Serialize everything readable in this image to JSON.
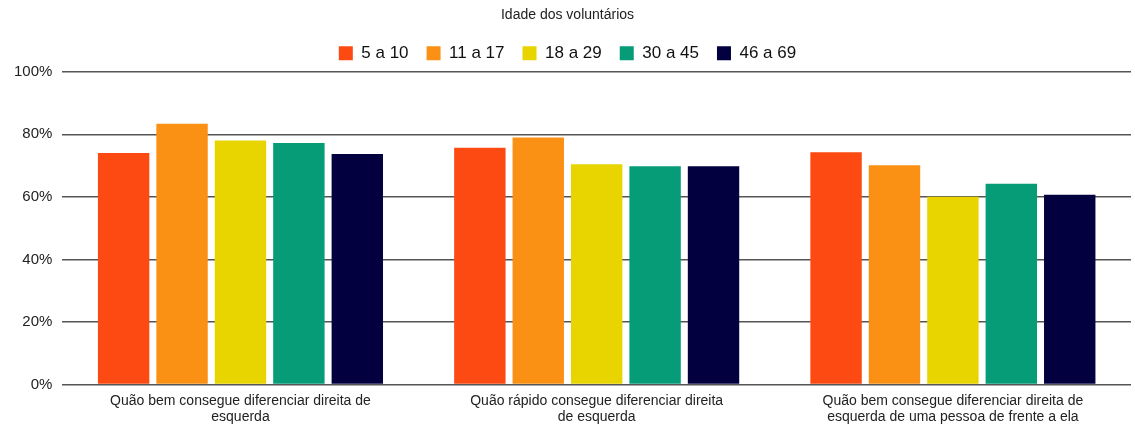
{
  "chart_data": {
    "type": "bar",
    "legend_title": "Idade dos voluntários",
    "legend": "top",
    "grid": "y",
    "categories": [
      "Quão bem consegue diferenciar direita de esquerda",
      "Quão rápido consegue diferenciar direita de esquerda",
      "Quão bem consegue diferenciar direita de esquerda de uma pessoa de frente a ela"
    ],
    "series": [
      {
        "name": "5 a 10",
        "color": "#fc4a12",
        "values": [
          74,
          75.7,
          74.3
        ]
      },
      {
        "name": "11 a 17",
        "color": "#fb9114",
        "values": [
          83.4,
          79,
          70.1
        ]
      },
      {
        "name": "18 a 29",
        "color": "#e8d500",
        "values": [
          78,
          70.4,
          60
        ]
      },
      {
        "name": "30 a 45",
        "color": "#069c78",
        "values": [
          77.2,
          69.8,
          64.2
        ]
      },
      {
        "name": "46 a 69",
        "color": "#02003f",
        "values": [
          73.7,
          69.8,
          60.7
        ]
      }
    ],
    "ylim": [
      0,
      100
    ],
    "yticks": [
      {
        "value": 0,
        "label": "0%"
      },
      {
        "value": 20,
        "label": "20%"
      },
      {
        "value": 40,
        "label": "40%"
      },
      {
        "value": 60,
        "label": "60%"
      },
      {
        "value": 80,
        "label": "80%"
      },
      {
        "value": 100,
        "label": "100%"
      }
    ]
  }
}
